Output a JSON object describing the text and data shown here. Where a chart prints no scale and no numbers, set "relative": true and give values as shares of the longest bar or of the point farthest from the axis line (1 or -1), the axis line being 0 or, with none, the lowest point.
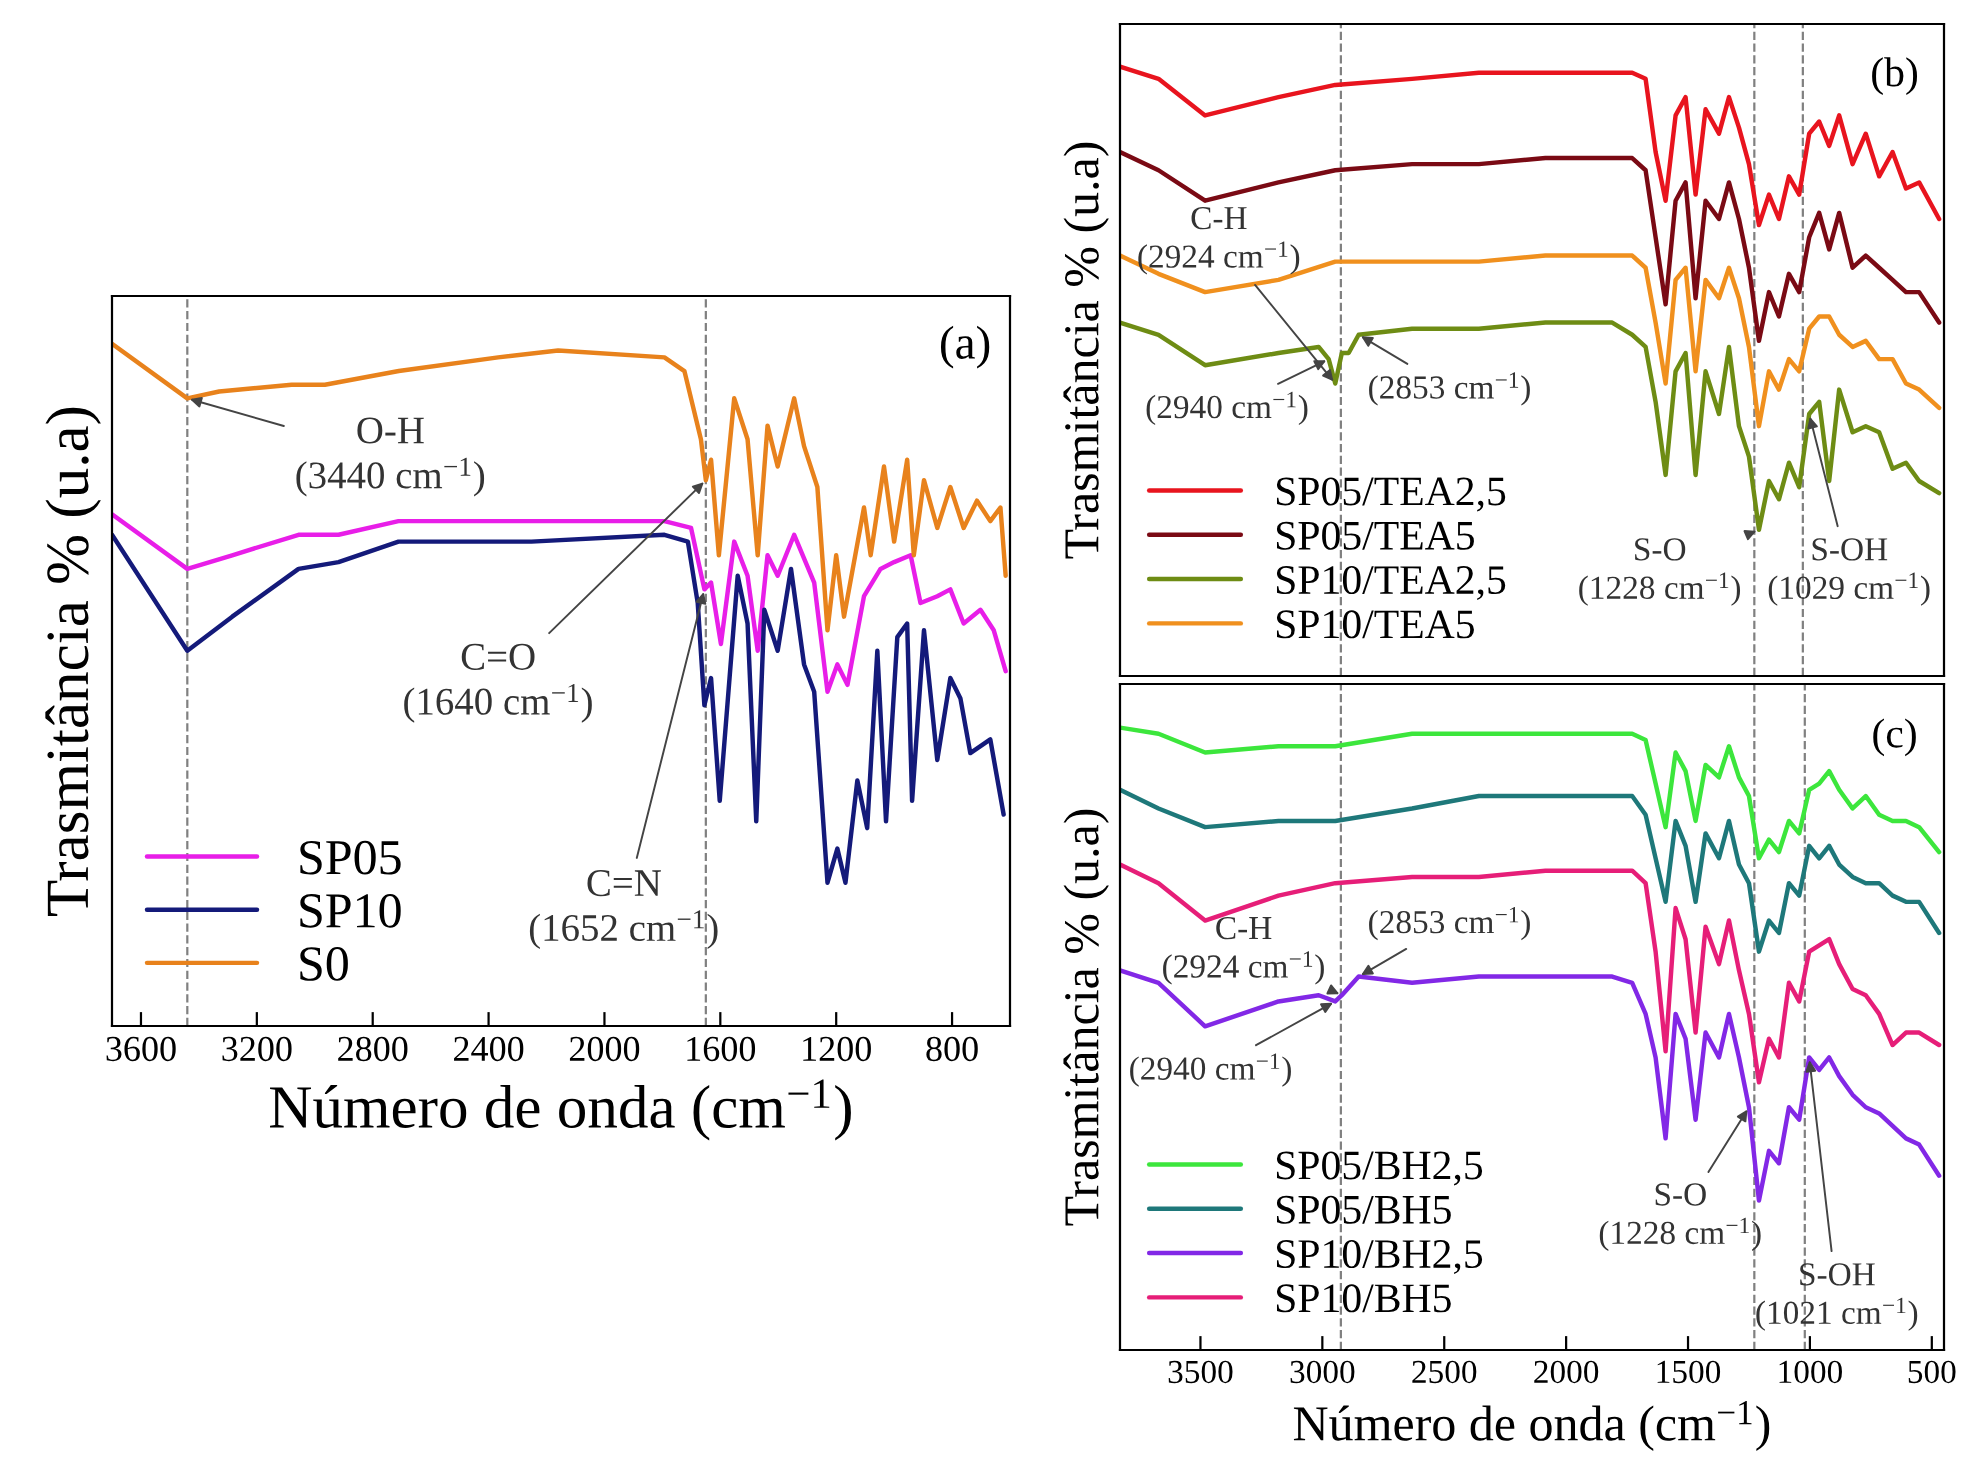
{
  "chart_data": [
    {
      "type": "line",
      "relative": true,
      "xlabel": "Número de onda (cm$^{−1}$)",
      "ylabel": "Trasmitância % (u.a)",
      "xlim": [
        3700,
        600
      ],
      "xticks": [
        3600,
        3200,
        2800,
        2400,
        2000,
        1600,
        1200,
        800
      ],
      "tick_labels": "x",
      "legend": "bottom left",
      "ref_lines": [
        {
          "axis": "x",
          "value": 3440,
          "color": "#808080",
          "line_style": "dashed"
        },
        {
          "axis": "x",
          "value": 1650,
          "color": "#808080",
          "line_style": "dashed"
        }
      ],
      "annotations": [
        "(a)",
        {
          "text": "O-H\n(3440 cm$^{−1}$)",
          "x": 3440,
          "y": 0.92
        },
        {
          "text": "C=O\n(1640 cm$^{−1}$)",
          "x": 1650,
          "y": 0.8
        },
        {
          "text": "C=N\n(1652 cm$^{−1}$)",
          "x": 1655,
          "y": 0.64
        }
      ],
      "series": [
        {
          "name": "SP05",
          "color": "#e81ee8",
          "x": [
            3700,
            3440,
            3285,
            3056,
            2918,
            2711,
            2252,
            1793,
            1701,
            1655,
            1632,
            1598,
            1552,
            1506,
            1471,
            1437,
            1402,
            1345,
            1276,
            1230,
            1196,
            1161,
            1104,
            1047,
            1000,
            943,
            909,
            851,
            806,
            760,
            702,
            656,
            615
          ],
          "values": [
            0.75,
            0.67,
            0.69,
            0.72,
            0.72,
            0.74,
            0.74,
            0.74,
            0.73,
            0.64,
            0.65,
            0.56,
            0.71,
            0.66,
            0.55,
            0.69,
            0.66,
            0.72,
            0.65,
            0.49,
            0.53,
            0.5,
            0.63,
            0.67,
            0.68,
            0.69,
            0.62,
            0.63,
            0.64,
            0.59,
            0.61,
            0.58,
            0.52
          ]
        },
        {
          "name": "SP10",
          "color": "#141a7a",
          "x": [
            3700,
            3440,
            3285,
            3056,
            2918,
            2711,
            2252,
            1793,
            1712,
            1678,
            1655,
            1632,
            1602,
            1540,
            1506,
            1476,
            1448,
            1402,
            1356,
            1311,
            1276,
            1230,
            1196,
            1168,
            1127,
            1093,
            1058,
            1028,
            989,
            955,
            938,
            897,
            851,
            806,
            771,
            737,
            668,
            622
          ],
          "values": [
            0.72,
            0.55,
            0.6,
            0.67,
            0.68,
            0.71,
            0.71,
            0.72,
            0.71,
            0.62,
            0.47,
            0.51,
            0.33,
            0.66,
            0.59,
            0.3,
            0.61,
            0.55,
            0.67,
            0.53,
            0.49,
            0.21,
            0.26,
            0.21,
            0.36,
            0.29,
            0.55,
            0.3,
            0.57,
            0.59,
            0.33,
            0.58,
            0.39,
            0.51,
            0.48,
            0.4,
            0.42,
            0.31
          ]
        },
        {
          "name": "S0",
          "color": "#e8821c",
          "x": [
            3700,
            3440,
            3330,
            3080,
            2965,
            2710,
            2367,
            2160,
            1793,
            1724,
            1667,
            1650,
            1632,
            1605,
            1552,
            1506,
            1471,
            1437,
            1402,
            1345,
            1311,
            1265,
            1230,
            1200,
            1173,
            1104,
            1081,
            1035,
            1000,
            955,
            932,
            897,
            851,
            806,
            760,
            714,
            668,
            633,
            615
          ],
          "values": [
            1.0,
            0.92,
            0.93,
            0.94,
            0.94,
            0.96,
            0.98,
            0.99,
            0.98,
            0.96,
            0.86,
            0.8,
            0.83,
            0.69,
            0.92,
            0.86,
            0.69,
            0.88,
            0.82,
            0.92,
            0.85,
            0.79,
            0.58,
            0.69,
            0.6,
            0.76,
            0.69,
            0.82,
            0.71,
            0.83,
            0.69,
            0.8,
            0.73,
            0.79,
            0.73,
            0.77,
            0.74,
            0.76,
            0.66
          ]
        }
      ]
    },
    {
      "type": "line",
      "relative": true,
      "ylabel": "Trasmitância % (u.a)",
      "xlim": [
        3830,
        450
      ],
      "tick_labels": false,
      "legend": "bottom left",
      "ref_lines": [
        {
          "axis": "x",
          "value": 2924,
          "color": "#808080",
          "line_style": "dashed"
        },
        {
          "axis": "x",
          "value": 1228,
          "color": "#808080",
          "line_style": "dashed"
        },
        {
          "axis": "x",
          "value": 1029,
          "color": "#808080",
          "line_style": "dashed"
        }
      ],
      "annotations": [
        "(b)",
        {
          "text": "C-H\n(2924 cm$^{−1}$)",
          "x": 2947,
          "y": 0.48
        },
        {
          "text": "(2940 cm$^{−1}$)",
          "x": 2974,
          "y": 0.52
        },
        {
          "text": "(2853 cm$^{−1}$)",
          "x": 2851,
          "y": 0.56
        },
        {
          "text": "S-O\n(1228 cm$^{−1}$)",
          "x": 1209,
          "y": 0.24
        },
        {
          "text": "S-OH\n(1029 cm$^{−1}$)",
          "x": 1003,
          "y": 0.43
        }
      ],
      "series": [
        {
          "name": "SP05/TEA2,5",
          "color": "#e8141e",
          "x": [
            3830,
            3672,
            3481,
            3180,
            2947,
            2632,
            2358,
            2085,
            1729,
            1674,
            1633,
            1592,
            1551,
            1510,
            1469,
            1428,
            1373,
            1332,
            1291,
            1250,
            1209,
            1168,
            1127,
            1086,
            1044,
            1003,
            962,
            921,
            880,
            825,
            771,
            716,
            661,
            606,
            552,
            470
          ],
          "values": [
            1.0,
            0.98,
            0.92,
            0.95,
            0.97,
            0.98,
            0.99,
            0.99,
            0.99,
            0.98,
            0.86,
            0.78,
            0.92,
            0.95,
            0.79,
            0.93,
            0.89,
            0.95,
            0.9,
            0.84,
            0.74,
            0.79,
            0.75,
            0.82,
            0.79,
            0.89,
            0.91,
            0.87,
            0.92,
            0.84,
            0.89,
            0.82,
            0.86,
            0.8,
            0.81,
            0.75
          ]
        },
        {
          "name": "SP05/TEA5",
          "color": "#7a0a14",
          "x": [
            3830,
            3672,
            3481,
            3180,
            2947,
            2632,
            2358,
            2085,
            1729,
            1674,
            1633,
            1592,
            1551,
            1510,
            1469,
            1428,
            1373,
            1332,
            1291,
            1250,
            1209,
            1168,
            1127,
            1086,
            1044,
            1003,
            962,
            921,
            880,
            825,
            771,
            716,
            661,
            606,
            552,
            470
          ],
          "values": [
            0.86,
            0.83,
            0.78,
            0.81,
            0.83,
            0.84,
            0.84,
            0.85,
            0.85,
            0.83,
            0.72,
            0.61,
            0.78,
            0.81,
            0.62,
            0.78,
            0.75,
            0.81,
            0.75,
            0.67,
            0.55,
            0.63,
            0.59,
            0.66,
            0.63,
            0.72,
            0.76,
            0.7,
            0.76,
            0.67,
            0.69,
            0.67,
            0.65,
            0.63,
            0.63,
            0.58
          ]
        },
        {
          "name": "SP10/TEA2,5",
          "color": "#6e8c14",
          "x": [
            3830,
            3672,
            3481,
            3180,
            3015,
            2974,
            2947,
            2920,
            2892,
            2851,
            2632,
            2358,
            2085,
            1811,
            1729,
            1674,
            1633,
            1592,
            1551,
            1510,
            1469,
            1428,
            1373,
            1332,
            1291,
            1250,
            1209,
            1168,
            1127,
            1086,
            1044,
            1003,
            962,
            921,
            880,
            825,
            771,
            716,
            661,
            606,
            552,
            470
          ],
          "values": [
            0.58,
            0.56,
            0.51,
            0.53,
            0.54,
            0.52,
            0.48,
            0.53,
            0.53,
            0.56,
            0.57,
            0.57,
            0.58,
            0.58,
            0.56,
            0.54,
            0.45,
            0.33,
            0.5,
            0.53,
            0.33,
            0.5,
            0.43,
            0.54,
            0.41,
            0.36,
            0.24,
            0.32,
            0.29,
            0.35,
            0.31,
            0.43,
            0.45,
            0.32,
            0.47,
            0.4,
            0.41,
            0.4,
            0.34,
            0.35,
            0.32,
            0.3
          ]
        },
        {
          "name": "SP10/TEA5",
          "color": "#f0901e",
          "x": [
            3830,
            3672,
            3481,
            3180,
            2947,
            2632,
            2358,
            2085,
            1729,
            1674,
            1633,
            1592,
            1551,
            1510,
            1469,
            1428,
            1373,
            1332,
            1291,
            1250,
            1209,
            1168,
            1127,
            1086,
            1044,
            1003,
            962,
            921,
            880,
            825,
            771,
            716,
            661,
            606,
            552,
            470
          ],
          "values": [
            0.69,
            0.66,
            0.63,
            0.65,
            0.68,
            0.68,
            0.68,
            0.69,
            0.69,
            0.67,
            0.58,
            0.48,
            0.65,
            0.67,
            0.5,
            0.65,
            0.62,
            0.67,
            0.62,
            0.54,
            0.41,
            0.5,
            0.47,
            0.52,
            0.5,
            0.57,
            0.59,
            0.59,
            0.56,
            0.54,
            0.55,
            0.52,
            0.52,
            0.48,
            0.47,
            0.44
          ]
        }
      ]
    },
    {
      "type": "line",
      "relative": true,
      "xlabel": "Número de onda (cm$^{−1}$)",
      "ylabel": "Trasmitância % (u.a)",
      "xlim": [
        3830,
        450
      ],
      "xticks": [
        3500,
        3000,
        2500,
        2000,
        1500,
        1000,
        500
      ],
      "tick_labels": "x",
      "legend": "bottom left",
      "ref_lines": [
        {
          "axis": "x",
          "value": 2924,
          "color": "#808080",
          "line_style": "dashed"
        },
        {
          "axis": "x",
          "value": 1228,
          "color": "#808080",
          "line_style": "dashed"
        },
        {
          "axis": "x",
          "value": 1021,
          "color": "#808080",
          "line_style": "dashed"
        }
      ],
      "annotations": [
        "(c)",
        {
          "text": "C-H\n(2924 cm$^{−1}$)",
          "x": 2920,
          "y": 0.57
        },
        {
          "text": "(2853 cm$^{−1}$)",
          "x": 2851,
          "y": 0.6
        },
        {
          "text": "(2940 cm$^{−1}$)",
          "x": 2947,
          "y": 0.56
        },
        {
          "text": "S-O\n(1228 cm$^{−1}$)",
          "x": 1250,
          "y": 0.39
        },
        {
          "text": "S-OH\n(1021 cm$^{−1}$)",
          "x": 1003,
          "y": 0.47
        }
      ],
      "series": [
        {
          "name": "SP05/BH2,5",
          "color": "#3ce63c",
          "x": [
            3830,
            3672,
            3481,
            3180,
            2947,
            2632,
            2358,
            2085,
            1729,
            1674,
            1633,
            1592,
            1551,
            1510,
            1469,
            1428,
            1373,
            1332,
            1291,
            1250,
            1209,
            1168,
            1127,
            1086,
            1044,
            1003,
            962,
            921,
            880,
            825,
            771,
            716,
            661,
            606,
            552,
            470
          ],
          "values": [
            1.0,
            0.99,
            0.96,
            0.97,
            0.97,
            0.99,
            0.99,
            0.99,
            0.99,
            0.98,
            0.91,
            0.84,
            0.96,
            0.93,
            0.85,
            0.94,
            0.92,
            0.97,
            0.92,
            0.89,
            0.79,
            0.82,
            0.8,
            0.85,
            0.83,
            0.9,
            0.91,
            0.93,
            0.9,
            0.87,
            0.89,
            0.86,
            0.85,
            0.85,
            0.84,
            0.8
          ]
        },
        {
          "name": "SP05/BH5",
          "color": "#1e787a",
          "x": [
            3830,
            3672,
            3481,
            3180,
            2947,
            2632,
            2358,
            2085,
            1729,
            1674,
            1633,
            1592,
            1551,
            1510,
            1469,
            1428,
            1373,
            1332,
            1291,
            1250,
            1209,
            1168,
            1127,
            1086,
            1044,
            1003,
            962,
            921,
            880,
            825,
            771,
            716,
            661,
            606,
            552,
            470
          ],
          "values": [
            0.9,
            0.87,
            0.84,
            0.85,
            0.85,
            0.87,
            0.89,
            0.89,
            0.89,
            0.86,
            0.79,
            0.72,
            0.85,
            0.81,
            0.72,
            0.83,
            0.79,
            0.85,
            0.78,
            0.75,
            0.64,
            0.69,
            0.67,
            0.75,
            0.73,
            0.81,
            0.79,
            0.81,
            0.78,
            0.76,
            0.75,
            0.75,
            0.73,
            0.72,
            0.72,
            0.67
          ]
        },
        {
          "name": "SP10/BH2,5",
          "color": "#8228e6",
          "x": [
            3830,
            3672,
            3481,
            3180,
            3015,
            2947,
            2920,
            2851,
            2632,
            2358,
            2085,
            1811,
            1729,
            1674,
            1633,
            1592,
            1551,
            1510,
            1469,
            1428,
            1373,
            1332,
            1291,
            1250,
            1209,
            1168,
            1127,
            1086,
            1044,
            1003,
            962,
            921,
            880,
            825,
            771,
            716,
            661,
            606,
            552,
            470
          ],
          "values": [
            0.61,
            0.59,
            0.52,
            0.56,
            0.57,
            0.56,
            0.57,
            0.6,
            0.59,
            0.6,
            0.6,
            0.6,
            0.59,
            0.54,
            0.47,
            0.34,
            0.54,
            0.5,
            0.37,
            0.51,
            0.47,
            0.54,
            0.47,
            0.39,
            0.24,
            0.32,
            0.3,
            0.39,
            0.37,
            0.47,
            0.45,
            0.47,
            0.44,
            0.41,
            0.39,
            0.38,
            0.36,
            0.34,
            0.33,
            0.28
          ]
        },
        {
          "name": "SP10/BH5",
          "color": "#e61e78",
          "x": [
            3830,
            3672,
            3481,
            3180,
            2947,
            2632,
            2358,
            2085,
            1729,
            1674,
            1633,
            1592,
            1551,
            1510,
            1469,
            1428,
            1373,
            1332,
            1291,
            1250,
            1209,
            1168,
            1127,
            1086,
            1044,
            1003,
            962,
            921,
            880,
            825,
            771,
            716,
            661,
            606,
            552,
            470
          ],
          "values": [
            0.78,
            0.75,
            0.69,
            0.73,
            0.75,
            0.76,
            0.76,
            0.77,
            0.77,
            0.75,
            0.64,
            0.48,
            0.71,
            0.66,
            0.51,
            0.68,
            0.62,
            0.69,
            0.61,
            0.54,
            0.43,
            0.5,
            0.47,
            0.59,
            0.56,
            0.64,
            0.65,
            0.66,
            0.62,
            0.58,
            0.57,
            0.54,
            0.49,
            0.51,
            0.51,
            0.49
          ]
        }
      ]
    }
  ]
}
